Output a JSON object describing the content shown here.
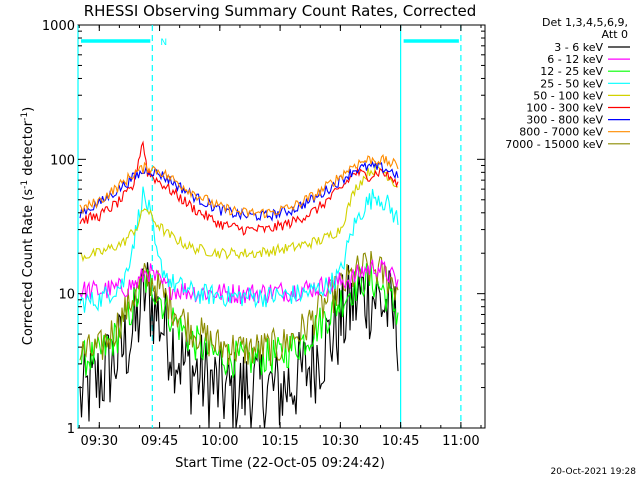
{
  "chart_data": {
    "type": "line",
    "title": "RHESSI Observing Summary Count Rates, Corrected",
    "xlabel": "Start Time (22-Oct-05 09:24:42)",
    "ylabel_main": "Corrected Count Rate (s",
    "ylabel_sup1": "-1",
    "ylabel_mid": " detector",
    "ylabel_sup2": "-1",
    "ylabel_end": ")",
    "yscale": "log",
    "ylim": [
      1,
      1000
    ],
    "xlim": [
      9.4117,
      11.1
    ],
    "x_ticks": [
      {
        "label": "09:30",
        "value": 9.5
      },
      {
        "label": "09:45",
        "value": 9.75
      },
      {
        "label": "10:00",
        "value": 10.0
      },
      {
        "label": "10:15",
        "value": 10.25
      },
      {
        "label": "10:30",
        "value": 10.5
      },
      {
        "label": "10:45",
        "value": 10.75
      },
      {
        "label": "11:00",
        "value": 11.0
      }
    ],
    "y_ticks": [
      {
        "label": "1",
        "value": 1
      },
      {
        "label": "10",
        "value": 10
      },
      {
        "label": "100",
        "value": 100
      },
      {
        "label": "1000",
        "value": 1000
      }
    ],
    "legend_header": [
      "Det 1,3,4,5,6,9,",
      "Att 0"
    ],
    "legend_placement": "right",
    "series": [
      {
        "name": "3 - 6 keV",
        "color": "#000000",
        "points": [
          [
            9.42,
            1.6
          ],
          [
            9.5,
            2.3
          ],
          [
            9.58,
            3.5
          ],
          [
            9.65,
            5.5
          ],
          [
            9.69,
            10.5
          ],
          [
            9.72,
            8.5
          ],
          [
            9.76,
            6.0
          ],
          [
            9.85,
            3.0
          ],
          [
            9.95,
            2.2
          ],
          [
            10.05,
            1.8
          ],
          [
            10.15,
            2.0
          ],
          [
            10.25,
            1.9
          ],
          [
            10.35,
            2.6
          ],
          [
            10.45,
            4.5
          ],
          [
            10.5,
            6.0
          ],
          [
            10.55,
            8.5
          ],
          [
            10.6,
            10.0
          ],
          [
            10.65,
            9.5
          ],
          [
            10.7,
            7.5
          ],
          [
            10.74,
            5.5
          ]
        ]
      },
      {
        "name": "6 - 12 keV",
        "color": "#ff00ff",
        "points": [
          [
            9.42,
            10.5
          ],
          [
            9.5,
            10.5
          ],
          [
            9.6,
            11.0
          ],
          [
            9.66,
            12.0
          ],
          [
            9.7,
            15.0
          ],
          [
            9.73,
            13.0
          ],
          [
            9.78,
            11.0
          ],
          [
            9.9,
            10.3
          ],
          [
            10.1,
            10.0
          ],
          [
            10.3,
            10.5
          ],
          [
            10.45,
            11.5
          ],
          [
            10.55,
            13.0
          ],
          [
            10.6,
            15.0
          ],
          [
            10.65,
            16.0
          ],
          [
            10.7,
            14.0
          ],
          [
            10.74,
            12.0
          ]
        ]
      },
      {
        "name": "12 - 25 keV",
        "color": "#00ff00",
        "points": [
          [
            9.42,
            3.2
          ],
          [
            9.5,
            3.5
          ],
          [
            9.58,
            5.0
          ],
          [
            9.64,
            8.0
          ],
          [
            9.69,
            12.5
          ],
          [
            9.73,
            11.0
          ],
          [
            9.78,
            7.5
          ],
          [
            9.88,
            4.5
          ],
          [
            9.98,
            3.5
          ],
          [
            10.1,
            3.2
          ],
          [
            10.25,
            3.5
          ],
          [
            10.35,
            4.5
          ],
          [
            10.45,
            7.0
          ],
          [
            10.55,
            11.0
          ],
          [
            10.6,
            13.0
          ],
          [
            10.65,
            12.0
          ],
          [
            10.7,
            9.5
          ],
          [
            10.74,
            7.0
          ]
        ]
      },
      {
        "name": "25 - 50 keV",
        "color": "#00ffff",
        "points": [
          [
            9.42,
            8.5
          ],
          [
            9.5,
            9.0
          ],
          [
            9.6,
            12.0
          ],
          [
            9.65,
            28.0
          ],
          [
            9.68,
            55.0
          ],
          [
            9.71,
            40.0
          ],
          [
            9.74,
            18.0
          ],
          [
            9.8,
            12.0
          ],
          [
            9.9,
            10.0
          ],
          [
            10.05,
            9.5
          ],
          [
            10.2,
            9.5
          ],
          [
            10.35,
            10.0
          ],
          [
            10.45,
            11.5
          ],
          [
            10.5,
            14.0
          ],
          [
            10.55,
            30.0
          ],
          [
            10.6,
            45.0
          ],
          [
            10.65,
            55.0
          ],
          [
            10.7,
            45.0
          ],
          [
            10.74,
            35.0
          ]
        ]
      },
      {
        "name": "50 - 100 keV",
        "color": "#d2d200",
        "points": [
          [
            9.42,
            19.0
          ],
          [
            9.5,
            20.0
          ],
          [
            9.6,
            24.0
          ],
          [
            9.66,
            32.0
          ],
          [
            9.69,
            45.0
          ],
          [
            9.72,
            36.0
          ],
          [
            9.78,
            28.0
          ],
          [
            9.88,
            22.0
          ],
          [
            10.0,
            20.0
          ],
          [
            10.15,
            20.0
          ],
          [
            10.3,
            22.0
          ],
          [
            10.42,
            25.0
          ],
          [
            10.5,
            30.0
          ],
          [
            10.56,
            60.0
          ],
          [
            10.62,
            82.0
          ],
          [
            10.67,
            85.0
          ],
          [
            10.71,
            72.0
          ],
          [
            10.74,
            62.0
          ]
        ]
      },
      {
        "name": "100 - 300 keV",
        "color": "#ff0000",
        "points": [
          [
            9.42,
            35.0
          ],
          [
            9.5,
            38.0
          ],
          [
            9.58,
            48.0
          ],
          [
            9.64,
            62.0
          ],
          [
            9.68,
            140.0
          ],
          [
            9.7,
            80.0
          ],
          [
            9.74,
            70.0
          ],
          [
            9.8,
            58.0
          ],
          [
            9.9,
            42.0
          ],
          [
            10.0,
            33.0
          ],
          [
            10.1,
            30.0
          ],
          [
            10.2,
            30.0
          ],
          [
            10.3,
            34.0
          ],
          [
            10.4,
            42.0
          ],
          [
            10.5,
            60.0
          ],
          [
            10.56,
            80.0
          ],
          [
            10.62,
            75.0
          ],
          [
            10.67,
            82.0
          ],
          [
            10.72,
            70.0
          ],
          [
            10.74,
            62.0
          ]
        ]
      },
      {
        "name": "300 - 800 keV",
        "color": "#0000ff",
        "points": [
          [
            9.42,
            40.0
          ],
          [
            9.5,
            47.0
          ],
          [
            9.58,
            60.0
          ],
          [
            9.65,
            75.0
          ],
          [
            9.7,
            84.0
          ],
          [
            9.75,
            78.0
          ],
          [
            9.82,
            65.0
          ],
          [
            9.9,
            52.0
          ],
          [
            10.0,
            42.0
          ],
          [
            10.1,
            38.0
          ],
          [
            10.2,
            38.0
          ],
          [
            10.3,
            42.0
          ],
          [
            10.4,
            52.0
          ],
          [
            10.5,
            70.0
          ],
          [
            10.56,
            84.0
          ],
          [
            10.62,
            88.0
          ],
          [
            10.68,
            86.0
          ],
          [
            10.72,
            80.0
          ],
          [
            10.74,
            75.0
          ]
        ]
      },
      {
        "name": "800 - 7000 keV",
        "color": "#ff8c00",
        "points": [
          [
            9.42,
            42.0
          ],
          [
            9.5,
            49.0
          ],
          [
            9.58,
            63.0
          ],
          [
            9.65,
            80.0
          ],
          [
            9.7,
            88.0
          ],
          [
            9.75,
            82.0
          ],
          [
            9.82,
            68.0
          ],
          [
            9.9,
            55.0
          ],
          [
            10.0,
            44.0
          ],
          [
            10.1,
            40.0
          ],
          [
            10.2,
            40.0
          ],
          [
            10.3,
            44.0
          ],
          [
            10.4,
            55.0
          ],
          [
            10.5,
            75.0
          ],
          [
            10.56,
            92.0
          ],
          [
            10.62,
            100.0
          ],
          [
            10.68,
            98.0
          ],
          [
            10.72,
            92.0
          ],
          [
            10.74,
            88.0
          ]
        ]
      },
      {
        "name": "7000 - 15000 keV",
        "color": "#8c8c00",
        "points": [
          [
            9.42,
            3.6
          ],
          [
            9.5,
            3.8
          ],
          [
            9.58,
            6.0
          ],
          [
            9.64,
            9.5
          ],
          [
            9.69,
            13.0
          ],
          [
            9.73,
            12.0
          ],
          [
            9.78,
            9.0
          ],
          [
            9.88,
            5.5
          ],
          [
            9.98,
            4.2
          ],
          [
            10.1,
            3.8
          ],
          [
            10.25,
            4.0
          ],
          [
            10.35,
            5.5
          ],
          [
            10.45,
            9.0
          ],
          [
            10.55,
            13.5
          ],
          [
            10.6,
            15.5
          ],
          [
            10.65,
            15.0
          ],
          [
            10.7,
            13.0
          ],
          [
            10.74,
            11.0
          ]
        ]
      }
    ],
    "markers": {
      "night_label": "N",
      "night_bars": [
        [
          9.4117,
          9.72
        ],
        [
          10.75,
          11.0
        ]
      ],
      "night_bar_level": 760,
      "saa_dashed_lines": [
        9.72,
        11.0
      ],
      "solid_lines": [
        9.4117,
        10.75
      ],
      "marker_color": "#00ffff"
    }
  },
  "footer_timestamp": "20-Oct-2021 19:28"
}
